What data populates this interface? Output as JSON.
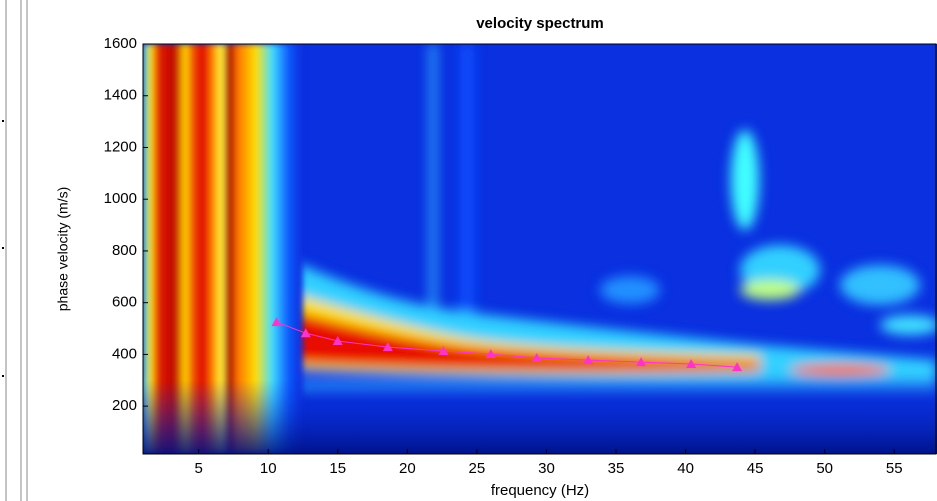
{
  "chart_data": {
    "type": "line",
    "title": "velocity spectrum",
    "x_label": "frequency (Hz)",
    "y_label": "phase velocity (m/s)",
    "x": [
      10.6,
      12.7,
      15.0,
      18.6,
      22.6,
      26.0,
      29.3,
      33.0,
      36.8,
      40.4,
      43.7
    ],
    "values": [
      525,
      482,
      452,
      428,
      413,
      401,
      386,
      378,
      370,
      363,
      351
    ],
    "color": "#ff33cc",
    "xlim": [
      1,
      58
    ],
    "xticks": [
      5,
      10,
      15,
      20,
      25,
      30,
      35,
      40,
      45,
      50,
      55
    ],
    "ylim": [
      15,
      1600
    ],
    "yticks": [
      200,
      400,
      600,
      800,
      1000,
      1200,
      1400,
      1600
    ]
  }
}
